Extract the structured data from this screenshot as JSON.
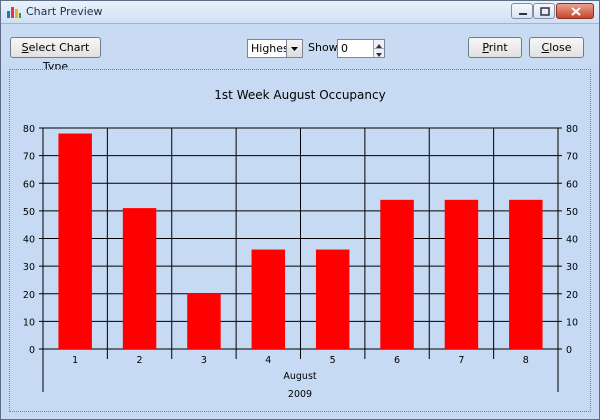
{
  "window": {
    "title": "Chart Preview"
  },
  "toolbar": {
    "select_chart_type": {
      "label": "Select Chart Type",
      "mnemonic": "S"
    },
    "sort_select": {
      "value": "Highest"
    },
    "show_label": "Show:",
    "show_value": "0",
    "print": {
      "label": "Print",
      "mnemonic": "P"
    },
    "close": {
      "label": "Close",
      "mnemonic": "C"
    }
  },
  "chart_data": {
    "type": "bar",
    "title": "1st Week August Occupancy",
    "categories": [
      "1",
      "2",
      "3",
      "4",
      "5",
      "6",
      "7",
      "8"
    ],
    "values": [
      78,
      51,
      20,
      36,
      36,
      54,
      54,
      54
    ],
    "xlabel": "August",
    "xlabel_sub": "2009",
    "ylim": [
      0,
      80
    ],
    "yticks": [
      0,
      10,
      20,
      30,
      40,
      50,
      60,
      70,
      80
    ],
    "bar_color": "#ff0000",
    "grid": true,
    "right_axis": true
  },
  "colors": {
    "panel_bg": "#c6daf3",
    "bar": "#ff0000"
  }
}
